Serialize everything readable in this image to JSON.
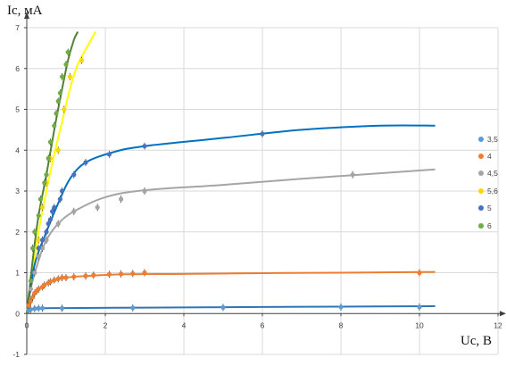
{
  "chart_data": {
    "type": "scatter",
    "title": "",
    "ylabel": "Ic, мA",
    "xlabel": "Uc, B",
    "xlim": [
      0,
      12
    ],
    "ylim": [
      -1,
      7
    ],
    "xticks": [
      "0",
      "2",
      "4",
      "6",
      "8",
      "10",
      "12"
    ],
    "yticks": [
      "-1",
      "0",
      "1",
      "2",
      "3",
      "4",
      "5",
      "6",
      "7"
    ],
    "grid": true,
    "legend_position": "right",
    "series": [
      {
        "name": "3,5",
        "color": "#5b9bd5",
        "line_color": "#2e75b6",
        "points": [
          [
            0.05,
            0.08
          ],
          [
            0.1,
            0.1
          ],
          [
            0.2,
            0.12
          ],
          [
            0.3,
            0.13
          ],
          [
            0.4,
            0.13
          ],
          [
            0.9,
            0.13
          ],
          [
            2.7,
            0.14
          ],
          [
            5.0,
            0.15
          ],
          [
            8.0,
            0.16
          ],
          [
            10.0,
            0.16
          ]
        ],
        "curve": [
          [
            0,
            0
          ],
          [
            0.05,
            0.08
          ],
          [
            0.15,
            0.11
          ],
          [
            0.4,
            0.13
          ],
          [
            1,
            0.135
          ],
          [
            3,
            0.145
          ],
          [
            6,
            0.16
          ],
          [
            8,
            0.17
          ],
          [
            10.4,
            0.18
          ]
        ]
      },
      {
        "name": "4",
        "color": "#ed7d31",
        "line_color": "#ed7d31",
        "points": [
          [
            0.05,
            0.2
          ],
          [
            0.1,
            0.3
          ],
          [
            0.15,
            0.4
          ],
          [
            0.2,
            0.5
          ],
          [
            0.25,
            0.55
          ],
          [
            0.3,
            0.6
          ],
          [
            0.4,
            0.65
          ],
          [
            0.45,
            0.7
          ],
          [
            0.55,
            0.75
          ],
          [
            0.6,
            0.78
          ],
          [
            0.7,
            0.82
          ],
          [
            0.8,
            0.85
          ],
          [
            0.9,
            0.88
          ],
          [
            1.0,
            0.88
          ],
          [
            1.2,
            0.9
          ],
          [
            1.5,
            0.92
          ],
          [
            1.7,
            0.94
          ],
          [
            2.1,
            0.96
          ],
          [
            2.4,
            0.97
          ],
          [
            2.7,
            0.98
          ],
          [
            3.0,
            1.0
          ],
          [
            10.0,
            1.0
          ]
        ],
        "curve": [
          [
            0,
            0
          ],
          [
            0.1,
            0.3
          ],
          [
            0.3,
            0.6
          ],
          [
            0.6,
            0.78
          ],
          [
            1.0,
            0.88
          ],
          [
            1.5,
            0.92
          ],
          [
            2.5,
            0.96
          ],
          [
            4,
            0.97
          ],
          [
            6,
            0.99
          ],
          [
            8,
            1.0
          ],
          [
            10.4,
            1.02
          ]
        ]
      },
      {
        "name": "4,5",
        "color": "#a5a5a5",
        "line_color": "#a5a5a5",
        "points": [
          [
            0.1,
            0.6
          ],
          [
            0.2,
            1.0
          ],
          [
            0.3,
            1.4
          ],
          [
            0.4,
            1.6
          ],
          [
            0.5,
            1.8
          ],
          [
            0.8,
            2.2
          ],
          [
            1.2,
            2.5
          ],
          [
            1.8,
            2.6
          ],
          [
            2.4,
            2.8
          ],
          [
            3.0,
            3.0
          ],
          [
            8.3,
            3.4
          ]
        ],
        "curve": [
          [
            0,
            0
          ],
          [
            0.1,
            0.6
          ],
          [
            0.3,
            1.3
          ],
          [
            0.5,
            1.8
          ],
          [
            0.8,
            2.2
          ],
          [
            1.2,
            2.5
          ],
          [
            2,
            2.85
          ],
          [
            3,
            3.02
          ],
          [
            5,
            3.15
          ],
          [
            7,
            3.3
          ],
          [
            10.4,
            3.53
          ]
        ]
      },
      {
        "name": "5,6",
        "color": "#ffd700",
        "line_color": "#ffff00",
        "points": [
          [
            0.3,
            1.8
          ],
          [
            0.4,
            2.6
          ],
          [
            0.5,
            3.2
          ],
          [
            0.6,
            3.8
          ],
          [
            0.8,
            4.0
          ],
          [
            0.95,
            5.0
          ],
          [
            1.1,
            5.8
          ],
          [
            1.4,
            6.2
          ]
        ],
        "curve": [
          [
            0,
            0
          ],
          [
            0.3,
            2.0
          ],
          [
            0.5,
            3.0
          ],
          [
            0.7,
            3.9
          ],
          [
            0.9,
            4.7
          ],
          [
            1.1,
            5.5
          ],
          [
            1.3,
            6.1
          ],
          [
            1.55,
            6.55
          ],
          [
            1.75,
            6.9
          ]
        ]
      },
      {
        "name": "5",
        "color": "#4472c4",
        "line_color": "#0070c0",
        "points": [
          [
            0.3,
            1.6
          ],
          [
            0.4,
            1.8
          ],
          [
            0.5,
            2.0
          ],
          [
            0.55,
            2.2
          ],
          [
            0.6,
            2.3
          ],
          [
            0.65,
            2.5
          ],
          [
            0.7,
            2.6
          ],
          [
            0.85,
            2.8
          ],
          [
            0.9,
            3.0
          ],
          [
            1.2,
            3.4
          ],
          [
            1.5,
            3.7
          ],
          [
            2.1,
            3.9
          ],
          [
            3.0,
            4.1
          ],
          [
            6.0,
            4.4
          ]
        ],
        "curve": [
          [
            0,
            0
          ],
          [
            0.2,
            1.2
          ],
          [
            0.5,
            2.0
          ],
          [
            0.8,
            2.7
          ],
          [
            1.1,
            3.3
          ],
          [
            1.5,
            3.7
          ],
          [
            2.2,
            3.95
          ],
          [
            3,
            4.1
          ],
          [
            5,
            4.3
          ],
          [
            7,
            4.5
          ],
          [
            9,
            4.6
          ],
          [
            10.4,
            4.6
          ]
        ]
      },
      {
        "name": "6",
        "color": "#70ad47",
        "line_color": "#548235",
        "points": [
          [
            0.1,
            0.8
          ],
          [
            0.15,
            1.6
          ],
          [
            0.2,
            2.0
          ],
          [
            0.3,
            2.4
          ],
          [
            0.35,
            2.8
          ],
          [
            0.45,
            3.2
          ],
          [
            0.5,
            3.4
          ],
          [
            0.55,
            3.8
          ],
          [
            0.6,
            4.2
          ],
          [
            0.7,
            4.6
          ],
          [
            0.75,
            4.9
          ],
          [
            0.8,
            5.2
          ],
          [
            0.85,
            5.4
          ],
          [
            0.9,
            5.8
          ],
          [
            1.0,
            6.1
          ],
          [
            1.05,
            6.4
          ]
        ],
        "curve": [
          [
            0,
            0
          ],
          [
            0.15,
            1.3
          ],
          [
            0.3,
            2.4
          ],
          [
            0.5,
            3.4
          ],
          [
            0.7,
            4.5
          ],
          [
            0.9,
            5.5
          ],
          [
            1.05,
            6.2
          ],
          [
            1.2,
            6.7
          ],
          [
            1.3,
            6.9
          ]
        ]
      }
    ]
  }
}
